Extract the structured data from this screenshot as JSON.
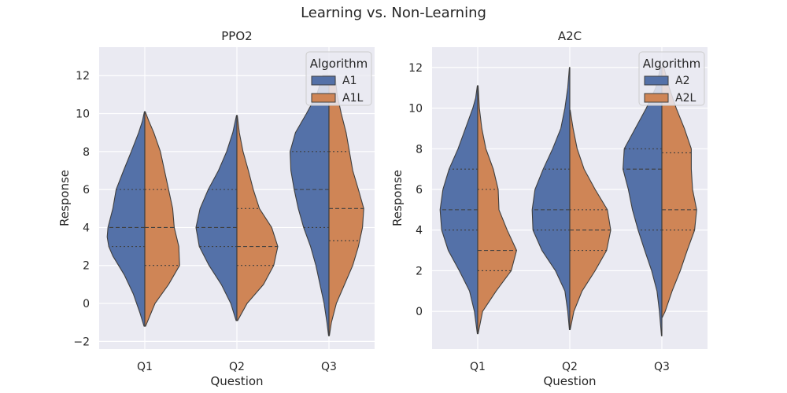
{
  "figure": {
    "title": "Learning vs. Non-Learning",
    "colors": {
      "plot_bg": "#eaeaf2",
      "grid": "#ffffff",
      "series_a": "#5471a8",
      "series_b": "#cf8556",
      "edge": "#3f3f3f"
    }
  },
  "chart_data": [
    {
      "type": "violin",
      "title": "PPO2",
      "xlabel": "Question",
      "ylabel": "Response",
      "categories": [
        "Q1",
        "Q2",
        "Q3"
      ],
      "ylim": [
        -2.4,
        13.5
      ],
      "yticks": [
        -2,
        0,
        2,
        4,
        6,
        8,
        10,
        12
      ],
      "yticklabels": [
        "−2",
        "0",
        "2",
        "4",
        "6",
        "8",
        "10",
        "12"
      ],
      "grid": true,
      "split": true,
      "inner": "quartile",
      "legend": {
        "title": "Algorithm",
        "position": "top-right",
        "entries": [
          "A1",
          "A1L"
        ]
      },
      "series": [
        {
          "name": "A1",
          "color": "#5471a8",
          "violins": [
            {
              "min": -1.2,
              "max": 10.1,
              "q1": 3.0,
              "median": 4.0,
              "q3": 6.0,
              "profile": [
                [
                  -1.2,
                  0.02
                ],
                [
                  -0.5,
                  0.12
                ],
                [
                  0.5,
                  0.28
                ],
                [
                  1.5,
                  0.5
                ],
                [
                  2.5,
                  0.78
                ],
                [
                  3.0,
                  0.88
                ],
                [
                  3.5,
                  0.92
                ],
                [
                  4.0,
                  0.9
                ],
                [
                  5.0,
                  0.78
                ],
                [
                  6.0,
                  0.7
                ],
                [
                  7.0,
                  0.52
                ],
                [
                  8.0,
                  0.33
                ],
                [
                  9.0,
                  0.15
                ],
                [
                  9.6,
                  0.06
                ],
                [
                  10.1,
                  0.01
                ]
              ]
            },
            {
              "min": -0.9,
              "max": 9.9,
              "q1": 3.0,
              "median": 4.0,
              "q3": 6.0,
              "profile": [
                [
                  -0.9,
                  0.02
                ],
                [
                  0.0,
                  0.15
                ],
                [
                  1.0,
                  0.38
                ],
                [
                  2.0,
                  0.68
                ],
                [
                  3.0,
                  0.92
                ],
                [
                  4.0,
                  1.0
                ],
                [
                  5.0,
                  0.9
                ],
                [
                  6.0,
                  0.7
                ],
                [
                  7.0,
                  0.45
                ],
                [
                  8.0,
                  0.25
                ],
                [
                  9.0,
                  0.1
                ],
                [
                  9.9,
                  0.01
                ]
              ]
            },
            {
              "min": -1.7,
              "max": 12.0,
              "q1": 4.0,
              "median": 6.0,
              "q3": 8.0,
              "profile": [
                [
                  -1.7,
                  0.01
                ],
                [
                  -1.0,
                  0.05
                ],
                [
                  0.0,
                  0.12
                ],
                [
                  1.0,
                  0.22
                ],
                [
                  2.0,
                  0.32
                ],
                [
                  3.0,
                  0.45
                ],
                [
                  4.0,
                  0.62
                ],
                [
                  5.0,
                  0.75
                ],
                [
                  6.0,
                  0.85
                ],
                [
                  7.0,
                  0.93
                ],
                [
                  8.0,
                  0.95
                ],
                [
                  9.0,
                  0.82
                ],
                [
                  10.0,
                  0.55
                ],
                [
                  11.0,
                  0.3
                ],
                [
                  12.0,
                  0.15
                ]
              ]
            }
          ]
        },
        {
          "name": "A1L",
          "color": "#cf8556",
          "violins": [
            {
              "min": -1.2,
              "max": 10.1,
              "q1": 2.0,
              "median": 4.0,
              "q3": 6.0,
              "profile": [
                [
                  -1.2,
                  0.02
                ],
                [
                  0.0,
                  0.25
                ],
                [
                  1.0,
                  0.58
                ],
                [
                  2.0,
                  0.85
                ],
                [
                  3.0,
                  0.83
                ],
                [
                  4.0,
                  0.72
                ],
                [
                  5.0,
                  0.68
                ],
                [
                  6.0,
                  0.58
                ],
                [
                  7.0,
                  0.48
                ],
                [
                  8.0,
                  0.38
                ],
                [
                  9.0,
                  0.22
                ],
                [
                  9.6,
                  0.1
                ],
                [
                  10.1,
                  0.01
                ]
              ]
            },
            {
              "min": -0.9,
              "max": 9.9,
              "q1": 2.0,
              "median": 3.0,
              "q3": 5.0,
              "profile": [
                [
                  -0.9,
                  0.02
                ],
                [
                  0.0,
                  0.25
                ],
                [
                  1.0,
                  0.65
                ],
                [
                  2.0,
                  0.9
                ],
                [
                  3.0,
                  1.0
                ],
                [
                  4.0,
                  0.85
                ],
                [
                  5.0,
                  0.55
                ],
                [
                  6.0,
                  0.4
                ],
                [
                  7.0,
                  0.28
                ],
                [
                  8.0,
                  0.15
                ],
                [
                  9.0,
                  0.06
                ],
                [
                  9.9,
                  0.01
                ]
              ]
            },
            {
              "min": -1.7,
              "max": 12.0,
              "q1": 3.3,
              "median": 5.0,
              "q3": 8.0,
              "profile": [
                [
                  -1.7,
                  0.01
                ],
                [
                  -1.0,
                  0.06
                ],
                [
                  0.0,
                  0.18
                ],
                [
                  1.0,
                  0.38
                ],
                [
                  2.0,
                  0.58
                ],
                [
                  3.0,
                  0.72
                ],
                [
                  4.0,
                  0.82
                ],
                [
                  5.0,
                  0.85
                ],
                [
                  6.0,
                  0.72
                ],
                [
                  7.0,
                  0.58
                ],
                [
                  8.0,
                  0.5
                ],
                [
                  9.0,
                  0.42
                ],
                [
                  10.0,
                  0.3
                ],
                [
                  11.0,
                  0.2
                ],
                [
                  12.0,
                  0.15
                ]
              ]
            }
          ]
        }
      ]
    },
    {
      "type": "violin",
      "title": "A2C",
      "xlabel": "Question",
      "ylabel": "Response",
      "categories": [
        "Q1",
        "Q2",
        "Q3"
      ],
      "ylim": [
        -1.85,
        13.0
      ],
      "yticks": [
        0,
        2,
        4,
        6,
        8,
        10,
        12
      ],
      "yticklabels": [
        "0",
        "2",
        "4",
        "6",
        "8",
        "10",
        "12"
      ],
      "grid": true,
      "split": true,
      "inner": "quartile",
      "legend": {
        "title": "Algorithm",
        "position": "top-right",
        "entries": [
          "A2",
          "A2L"
        ]
      },
      "series": [
        {
          "name": "A2",
          "color": "#5471a8",
          "violins": [
            {
              "min": -1.1,
              "max": 11.1,
              "q1": 4.0,
              "median": 5.0,
              "q3": 7.0,
              "profile": [
                [
                  -1.1,
                  0.01
                ],
                [
                  0.0,
                  0.08
                ],
                [
                  1.0,
                  0.2
                ],
                [
                  2.0,
                  0.45
                ],
                [
                  3.0,
                  0.72
                ],
                [
                  4.0,
                  0.88
                ],
                [
                  5.0,
                  0.92
                ],
                [
                  6.0,
                  0.85
                ],
                [
                  7.0,
                  0.7
                ],
                [
                  8.0,
                  0.48
                ],
                [
                  9.0,
                  0.3
                ],
                [
                  10.0,
                  0.12
                ],
                [
                  10.5,
                  0.05
                ],
                [
                  11.1,
                  0.01
                ]
              ]
            },
            {
              "min": -0.9,
              "max": 12.0,
              "q1": 4.0,
              "median": 5.0,
              "q3": 7.0,
              "profile": [
                [
                  -0.9,
                  0.01
                ],
                [
                  0.0,
                  0.05
                ],
                [
                  1.0,
                  0.12
                ],
                [
                  2.0,
                  0.35
                ],
                [
                  3.0,
                  0.68
                ],
                [
                  4.0,
                  0.9
                ],
                [
                  5.0,
                  0.92
                ],
                [
                  6.0,
                  0.85
                ],
                [
                  7.0,
                  0.65
                ],
                [
                  8.0,
                  0.42
                ],
                [
                  9.0,
                  0.22
                ],
                [
                  10.0,
                  0.12
                ],
                [
                  11.0,
                  0.05
                ],
                [
                  12.0,
                  0.01
                ]
              ]
            },
            {
              "min": -1.2,
              "max": 12.0,
              "q1": 4.0,
              "median": 7.0,
              "q3": 8.0,
              "profile": [
                [
                  -1.2,
                  0.01
                ],
                [
                  0.0,
                  0.06
                ],
                [
                  1.0,
                  0.12
                ],
                [
                  2.0,
                  0.25
                ],
                [
                  3.0,
                  0.42
                ],
                [
                  4.0,
                  0.58
                ],
                [
                  5.0,
                  0.72
                ],
                [
                  6.0,
                  0.82
                ],
                [
                  7.0,
                  0.95
                ],
                [
                  8.0,
                  0.92
                ],
                [
                  9.0,
                  0.65
                ],
                [
                  10.0,
                  0.38
                ],
                [
                  11.0,
                  0.15
                ],
                [
                  12.0,
                  0.03
                ]
              ]
            }
          ]
        },
        {
          "name": "A2L",
          "color": "#cf8556",
          "violins": [
            {
              "min": -1.1,
              "max": 11.1,
              "q1": 2.0,
              "median": 3.0,
              "q3": 6.0,
              "profile": [
                [
                  -1.1,
                  0.01
                ],
                [
                  0.0,
                  0.12
                ],
                [
                  1.0,
                  0.45
                ],
                [
                  2.0,
                  0.82
                ],
                [
                  3.0,
                  0.95
                ],
                [
                  4.0,
                  0.72
                ],
                [
                  5.0,
                  0.52
                ],
                [
                  6.0,
                  0.5
                ],
                [
                  7.0,
                  0.38
                ],
                [
                  8.0,
                  0.2
                ],
                [
                  9.0,
                  0.1
                ],
                [
                  10.0,
                  0.04
                ],
                [
                  11.1,
                  0.01
                ]
              ]
            },
            {
              "min": -0.9,
              "max": 9.9,
              "q1": 3.0,
              "median": 4.0,
              "q3": 5.0,
              "profile": [
                [
                  -0.9,
                  0.01
                ],
                [
                  0.0,
                  0.1
                ],
                [
                  1.0,
                  0.3
                ],
                [
                  2.0,
                  0.62
                ],
                [
                  3.0,
                  0.9
                ],
                [
                  4.0,
                  1.0
                ],
                [
                  5.0,
                  0.92
                ],
                [
                  6.0,
                  0.62
                ],
                [
                  7.0,
                  0.35
                ],
                [
                  8.0,
                  0.18
                ],
                [
                  9.0,
                  0.08
                ],
                [
                  9.9,
                  0.01
                ]
              ]
            },
            {
              "min": -0.3,
              "max": 12.0,
              "q1": 4.0,
              "median": 5.0,
              "q3": 7.8,
              "profile": [
                [
                  -0.3,
                  0.01
                ],
                [
                  0.0,
                  0.08
                ],
                [
                  1.0,
                  0.25
                ],
                [
                  2.0,
                  0.45
                ],
                [
                  3.0,
                  0.62
                ],
                [
                  4.0,
                  0.8
                ],
                [
                  5.0,
                  0.85
                ],
                [
                  6.0,
                  0.75
                ],
                [
                  7.0,
                  0.72
                ],
                [
                  8.0,
                  0.72
                ],
                [
                  9.0,
                  0.55
                ],
                [
                  10.0,
                  0.35
                ],
                [
                  11.0,
                  0.18
                ],
                [
                  12.0,
                  0.05
                ]
              ]
            }
          ]
        }
      ]
    }
  ]
}
